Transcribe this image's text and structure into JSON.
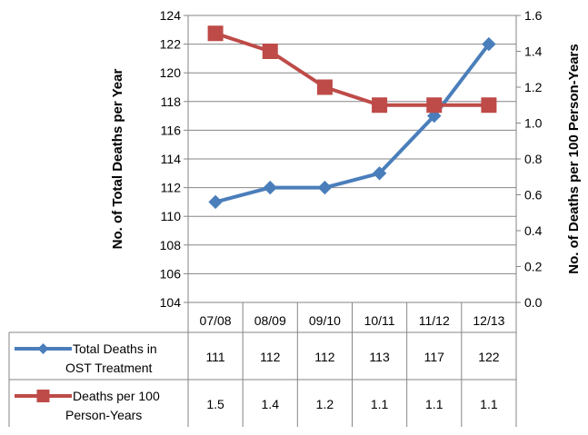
{
  "chart_data": {
    "type": "line",
    "categories": [
      "07/08",
      "08/09",
      "09/10",
      "10/11",
      "11/12",
      "12/13"
    ],
    "y_left": {
      "label": "No. of Total Deaths per Year",
      "lim": [
        104,
        124
      ],
      "ticks": [
        "104",
        "106",
        "108",
        "110",
        "112",
        "114",
        "116",
        "118",
        "120",
        "122",
        "124"
      ]
    },
    "y_right": {
      "label": "No. of Deaths per 100 Person-Years",
      "lim": [
        0.0,
        1.6
      ],
      "ticks": [
        "0.0",
        "0.2",
        "0.4",
        "0.6",
        "0.8",
        "1.0",
        "1.2",
        "1.4",
        "1.6"
      ]
    },
    "series": [
      {
        "name_lines": [
          "Total Deaths in",
          "OST Treatment"
        ],
        "axis": "left",
        "color": "#4a7ebb",
        "marker": "diamond",
        "values": [
          111,
          112,
          112,
          113,
          117,
          122
        ],
        "labels": [
          "111",
          "112",
          "112",
          "113",
          "117",
          "122"
        ]
      },
      {
        "name_lines": [
          "Deaths per 100",
          "Person-Years"
        ],
        "axis": "right",
        "color": "#be4b48",
        "marker": "square",
        "values": [
          1.5,
          1.4,
          1.2,
          1.1,
          1.1,
          1.1
        ],
        "labels": [
          "1.5",
          "1.4",
          "1.2",
          "1.1",
          "1.1",
          "1.1"
        ]
      }
    ],
    "grid": true,
    "legend": "data-table"
  }
}
